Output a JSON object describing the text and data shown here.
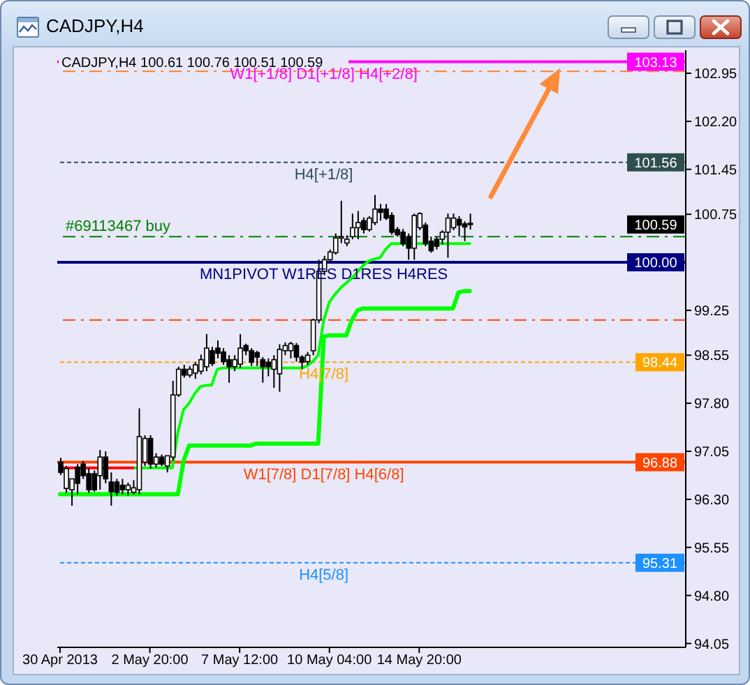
{
  "chart_data": {
    "type": "candlestick",
    "title": "CADJPY,H4",
    "subtitle": "CADJPY,H4 100.61 100.76 100.51 100.59",
    "categories": [
      "30 Apr 2013",
      null,
      null,
      null,
      null,
      null,
      null,
      null,
      null,
      null,
      null,
      null,
      null,
      null,
      null,
      null,
      "2 May 20:00",
      null,
      null,
      null,
      null,
      null,
      null,
      null,
      null,
      null,
      null,
      null,
      null,
      null,
      null,
      null,
      "7 May 12:00",
      null,
      null,
      null,
      null,
      null,
      null,
      null,
      null,
      null,
      null,
      null,
      null,
      null,
      null,
      null,
      "10 May 04:00",
      null,
      null,
      null,
      null,
      null,
      null,
      null,
      null,
      null,
      null,
      null,
      null,
      null,
      null,
      null,
      "14 May 20:00",
      null,
      null,
      null,
      null,
      null,
      null,
      null,
      null,
      null,
      null,
      null,
      null,
      null,
      null,
      null,
      null,
      null,
      null,
      null,
      null,
      null,
      null,
      null,
      null,
      null,
      null,
      null,
      null,
      null,
      null,
      null,
      null,
      null,
      null,
      null,
      null,
      null,
      null,
      null,
      null,
      null,
      null,
      null,
      null,
      null,
      null,
      null
    ],
    "ohlc": [
      [
        96.88,
        96.95,
        96.68,
        96.72
      ],
      [
        96.47,
        96.82,
        96.4,
        96.78
      ],
      [
        96.45,
        96.62,
        96.2,
        96.62
      ],
      [
        96.8,
        96.85,
        96.38,
        96.55
      ],
      [
        96.85,
        96.9,
        96.62,
        96.67
      ],
      [
        96.7,
        96.78,
        96.4,
        96.45
      ],
      [
        96.7,
        96.75,
        96.42,
        96.45
      ],
      [
        96.67,
        97.07,
        96.45,
        96.96
      ],
      [
        96.96,
        97.05,
        96.55,
        96.62
      ],
      [
        96.57,
        96.72,
        96.2,
        96.42
      ],
      [
        96.57,
        96.62,
        96.36,
        96.41
      ],
      [
        96.52,
        96.62,
        96.38,
        96.45
      ],
      [
        96.45,
        96.56,
        96.36,
        96.52
      ],
      [
        96.41,
        96.6,
        96.38,
        96.48
      ],
      [
        96.45,
        97.72,
        96.38,
        97.28
      ],
      [
        96.88,
        97.3,
        96.82,
        97.25
      ],
      [
        97.25,
        97.3,
        96.78,
        96.85
      ],
      [
        96.85,
        97.02,
        96.8,
        96.96
      ],
      [
        96.96,
        97.0,
        96.82,
        96.85
      ],
      [
        96.82,
        96.98,
        96.72,
        96.98
      ],
      [
        96.96,
        98.15,
        96.9,
        97.93
      ],
      [
        97.93,
        98.37,
        97.9,
        98.33
      ],
      [
        98.33,
        98.4,
        98.2,
        98.24
      ],
      [
        98.24,
        98.38,
        98.2,
        98.33
      ],
      [
        98.27,
        98.44,
        98.18,
        98.4
      ],
      [
        98.3,
        98.56,
        98.25,
        98.48
      ],
      [
        98.37,
        98.88,
        98.3,
        98.66
      ],
      [
        98.62,
        98.68,
        98.38,
        98.42
      ],
      [
        98.66,
        98.78,
        98.5,
        98.58
      ],
      [
        98.6,
        98.66,
        98.4,
        98.45
      ],
      [
        98.48,
        98.55,
        98.12,
        98.37
      ],
      [
        98.37,
        98.55,
        98.3,
        98.48
      ],
      [
        98.41,
        98.88,
        98.35,
        98.66
      ],
      [
        98.7,
        98.73,
        98.55,
        98.62
      ],
      [
        98.62,
        98.66,
        98.38,
        98.44
      ],
      [
        98.59,
        98.62,
        98.38,
        98.52
      ],
      [
        98.48,
        98.52,
        98.12,
        98.37
      ],
      [
        98.44,
        98.5,
        98.22,
        98.37
      ],
      [
        98.33,
        98.55,
        98.04,
        98.48
      ],
      [
        98.26,
        98.72,
        97.98,
        98.64
      ],
      [
        98.62,
        98.75,
        98.55,
        98.7
      ],
      [
        98.62,
        98.76,
        98.5,
        98.73
      ],
      [
        98.7,
        98.74,
        98.45,
        98.52
      ],
      [
        98.52,
        98.55,
        98.33,
        98.44
      ],
      [
        98.45,
        98.6,
        98.4,
        98.55
      ],
      [
        98.62,
        99.12,
        98.55,
        99.1
      ],
      [
        99.1,
        100.04,
        99.05,
        99.86
      ],
      [
        99.86,
        100.1,
        99.8,
        100.04
      ],
      [
        100.04,
        100.2,
        100.0,
        100.16
      ],
      [
        100.15,
        100.45,
        100.12,
        100.38
      ],
      [
        100.38,
        100.96,
        100.3,
        100.4
      ],
      [
        100.3,
        100.42,
        100.25,
        100.36
      ],
      [
        100.4,
        100.76,
        100.36,
        100.54
      ],
      [
        100.54,
        100.8,
        100.36,
        100.62
      ],
      [
        100.65,
        100.7,
        100.45,
        100.51
      ],
      [
        100.51,
        100.72,
        100.48,
        100.69
      ],
      [
        100.62,
        101.05,
        100.58,
        100.83
      ],
      [
        100.83,
        100.91,
        100.65,
        100.78
      ],
      [
        100.83,
        100.91,
        100.66,
        100.69
      ],
      [
        100.73,
        100.78,
        100.43,
        100.47
      ],
      [
        100.51,
        100.55,
        100.4,
        100.43
      ],
      [
        100.47,
        100.52,
        100.25,
        100.29
      ],
      [
        100.4,
        100.45,
        100.04,
        100.22
      ],
      [
        100.22,
        100.76,
        100.04,
        100.73
      ],
      [
        100.54,
        100.78,
        100.5,
        100.76
      ],
      [
        100.58,
        100.62,
        100.25,
        100.29
      ],
      [
        100.33,
        100.4,
        100.15,
        100.18
      ],
      [
        100.36,
        100.4,
        100.2,
        100.25
      ],
      [
        100.36,
        100.5,
        100.28,
        100.47
      ],
      [
        100.47,
        100.76,
        100.07,
        100.69
      ],
      [
        100.54,
        100.76,
        100.5,
        100.69
      ],
      [
        100.67,
        100.72,
        100.4,
        100.58
      ],
      [
        100.6,
        100.64,
        100.33,
        100.55
      ],
      [
        100.61,
        100.76,
        100.51,
        100.59
      ],
      null,
      null,
      null,
      null,
      null,
      null,
      null,
      null,
      null,
      null,
      null,
      null,
      null,
      null,
      null,
      null,
      null,
      null,
      null,
      null,
      null,
      null,
      null,
      null,
      null,
      null,
      null,
      null,
      null,
      null,
      null,
      null,
      null,
      null,
      null,
      null,
      null,
      null
    ],
    "series": [
      {
        "type": "line",
        "color": "#00ff00",
        "values": [
          96.38,
          96.38,
          96.38,
          96.38,
          96.38,
          96.38,
          96.38,
          96.38,
          96.38,
          96.38,
          96.38,
          96.38,
          96.38,
          96.38,
          96.38,
          96.38,
          96.38,
          96.38,
          96.38,
          96.38,
          96.38,
          96.38,
          96.9,
          97.14,
          97.14,
          97.14,
          97.14,
          97.14,
          97.14,
          97.14,
          97.14,
          97.14,
          97.14,
          97.14,
          97.14,
          97.17,
          97.17,
          97.17,
          97.17,
          97.17,
          97.17,
          97.17,
          97.17,
          97.17,
          97.17,
          97.17,
          97.17,
          98.84,
          98.86,
          98.86,
          98.86,
          98.86,
          99.1,
          99.25,
          99.28,
          99.28,
          99.28,
          99.28,
          99.28,
          99.28,
          99.28,
          99.28,
          99.28,
          99.28,
          99.28,
          99.28,
          99.28,
          99.28,
          99.28,
          99.28,
          99.28,
          99.53,
          99.55,
          99.55,
          null,
          null,
          null,
          null,
          null,
          null,
          null,
          null,
          null,
          null,
          null,
          null,
          null,
          null,
          null,
          null,
          null,
          null,
          null,
          null,
          null,
          null,
          null,
          null,
          null,
          null,
          null,
          null,
          null,
          null,
          null,
          null,
          null,
          null,
          null,
          null,
          null,
          null
        ]
      },
      {
        "type": "line",
        "color": "#00ff00",
        "values": [
          null,
          null,
          null,
          null,
          null,
          null,
          null,
          null,
          null,
          null,
          null,
          null,
          null,
          96.79,
          96.79,
          96.79,
          96.79,
          96.79,
          96.79,
          96.79,
          96.79,
          97.35,
          97.7,
          97.8,
          97.95,
          98.06,
          98.08,
          98.08,
          98.33,
          98.35,
          98.35,
          98.35,
          98.35,
          98.35,
          98.35,
          98.35,
          98.35,
          98.35,
          98.35,
          98.35,
          98.35,
          98.35,
          98.35,
          98.35,
          98.38,
          98.45,
          98.55,
          99.1,
          99.38,
          99.5,
          99.6,
          99.68,
          99.75,
          99.85,
          99.95,
          100.02,
          100.05,
          100.07,
          100.2,
          100.29,
          100.29,
          100.29,
          100.29,
          100.29,
          100.29,
          100.29,
          100.29,
          100.29,
          100.29,
          100.29,
          100.29,
          100.29,
          100.29,
          100.29,
          null,
          null,
          null,
          null,
          null,
          null,
          null,
          null,
          null,
          null,
          null,
          null,
          null,
          null,
          null,
          null,
          null,
          null,
          null,
          null,
          null,
          null,
          null,
          null,
          null,
          null,
          null,
          null,
          null,
          null,
          null,
          null,
          null,
          null,
          null,
          null,
          null,
          null
        ]
      },
      {
        "type": "line",
        "color": "#ff0000",
        "values": [
          96.79,
          96.79,
          96.79,
          96.79,
          96.79,
          96.79,
          96.79,
          96.79,
          96.79,
          96.79,
          96.79,
          96.79,
          96.79,
          96.79,
          null,
          null,
          null,
          null,
          null,
          null,
          null,
          null,
          null,
          null,
          null,
          null,
          null,
          null,
          null,
          null,
          null,
          null,
          null,
          null,
          null,
          null,
          null,
          null,
          null,
          null,
          null,
          null,
          null,
          null,
          null,
          null,
          null,
          null,
          null,
          null,
          null,
          null,
          null,
          null,
          null,
          null,
          null,
          null,
          null,
          null,
          null,
          null,
          null,
          null,
          null,
          null,
          null,
          null,
          null,
          null,
          null,
          null,
          null,
          null,
          null,
          null,
          null,
          null,
          null,
          null,
          null,
          null,
          null,
          null,
          null,
          null,
          null,
          null,
          null,
          null,
          null,
          null,
          null,
          null,
          null,
          null,
          null,
          null,
          null,
          null,
          null,
          null,
          null,
          null,
          null,
          null,
          null,
          null,
          null,
          null,
          null,
          null
        ]
      }
    ],
    "ylim": [
      93.99,
      103.31
    ],
    "yticks": [
      94.05,
      {
        "value": 94.8,
        "label": "94.80"
      },
      95.55,
      {
        "value": 96.3,
        "label": "96.30"
      },
      97.05,
      {
        "value": 97.8,
        "label": "97.80"
      },
      98.55,
      99.25,
      100.75,
      101.45,
      {
        "value": 102.2,
        "label": "102.20"
      },
      102.95
    ],
    "ref_lines": [
      {
        "axis": "y",
        "value": 103.13,
        "label": "W1[+1/8] D1[+1/8] H4[+2/8]",
        "color": "#ff00ff",
        "line_style": "solid"
      },
      {
        "axis": "y",
        "value": 102.98,
        "color": "#ff7f27",
        "line_style": "dashed"
      },
      {
        "axis": "y",
        "value": 101.56,
        "label": "H4[+1/8]",
        "color": "#2f4f4f",
        "line_style": "dotted"
      },
      {
        "axis": "y",
        "value": 100.4,
        "label": "#69113467 buy",
        "color": "#008000",
        "line_style": "dashed"
      },
      {
        "axis": "y",
        "value": 100,
        "label": "MN1PIVOT W1RES D1RES H4RES",
        "color": "#000080",
        "line_style": "solid"
      },
      {
        "axis": "y",
        "value": 99.1,
        "color": "#ff4500",
        "line_style": "dashed"
      },
      {
        "axis": "y",
        "value": 98.44,
        "label": "H4[7/8]",
        "color": "#ffa500",
        "line_style": "dotted"
      },
      {
        "axis": "y",
        "value": 96.88,
        "label": "W1[7/8] D1[7/8] H4[6/8]",
        "color": "#ff4500",
        "line_style": "solid"
      },
      {
        "axis": "y",
        "value": 95.31,
        "label": "H4[5/8]",
        "color": "#1e90ff",
        "line_style": "dotted"
      }
    ],
    "annotations": [
      {
        "text": "103.13",
        "y": 103.13
      },
      {
        "text": "101.56",
        "y": 101.56
      },
      {
        "text": "100.59",
        "y": 100.59
      },
      {
        "text": "100.00",
        "y": 100
      },
      {
        "text": "98.44",
        "y": 98.44
      },
      {
        "text": "96.88",
        "y": 96.88
      },
      {
        "text": "95.31",
        "y": 95.31
      }
    ]
  }
}
